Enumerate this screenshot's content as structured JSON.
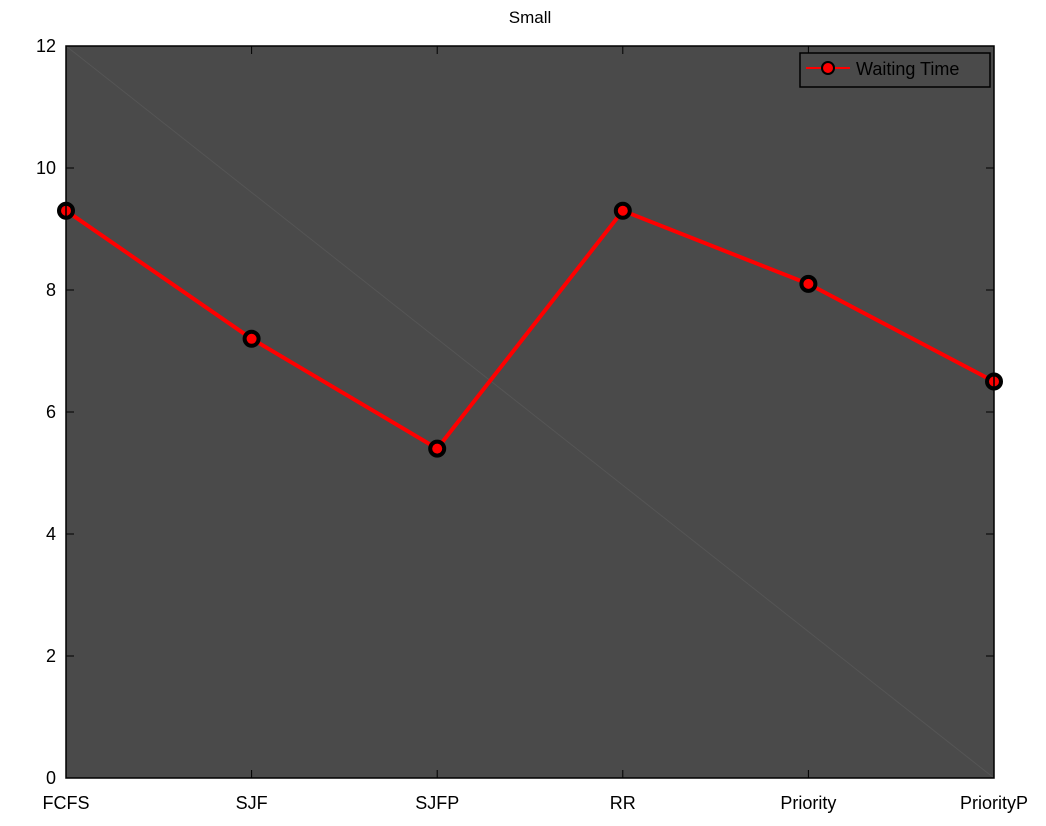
{
  "chart_data": {
    "type": "line",
    "title": "Small",
    "xlabel": "",
    "ylabel": "",
    "categories": [
      "FCFS",
      "SJF",
      "SJFP",
      "RR",
      "Priority",
      "PriorityP"
    ],
    "series": [
      {
        "name": "Waiting Time",
        "values": [
          9.3,
          7.2,
          5.4,
          9.3,
          8.1,
          6.5
        ],
        "color": "#ff0000",
        "marker": "circle",
        "marker_edge_color": "#000000"
      }
    ],
    "ylim": [
      0,
      12
    ],
    "yticks": [
      0,
      2,
      4,
      6,
      8,
      10,
      12
    ],
    "grid": false,
    "legend_position": "top-right",
    "plot_background": "#4a4a4a",
    "diagonal_line_color": "#555555"
  }
}
